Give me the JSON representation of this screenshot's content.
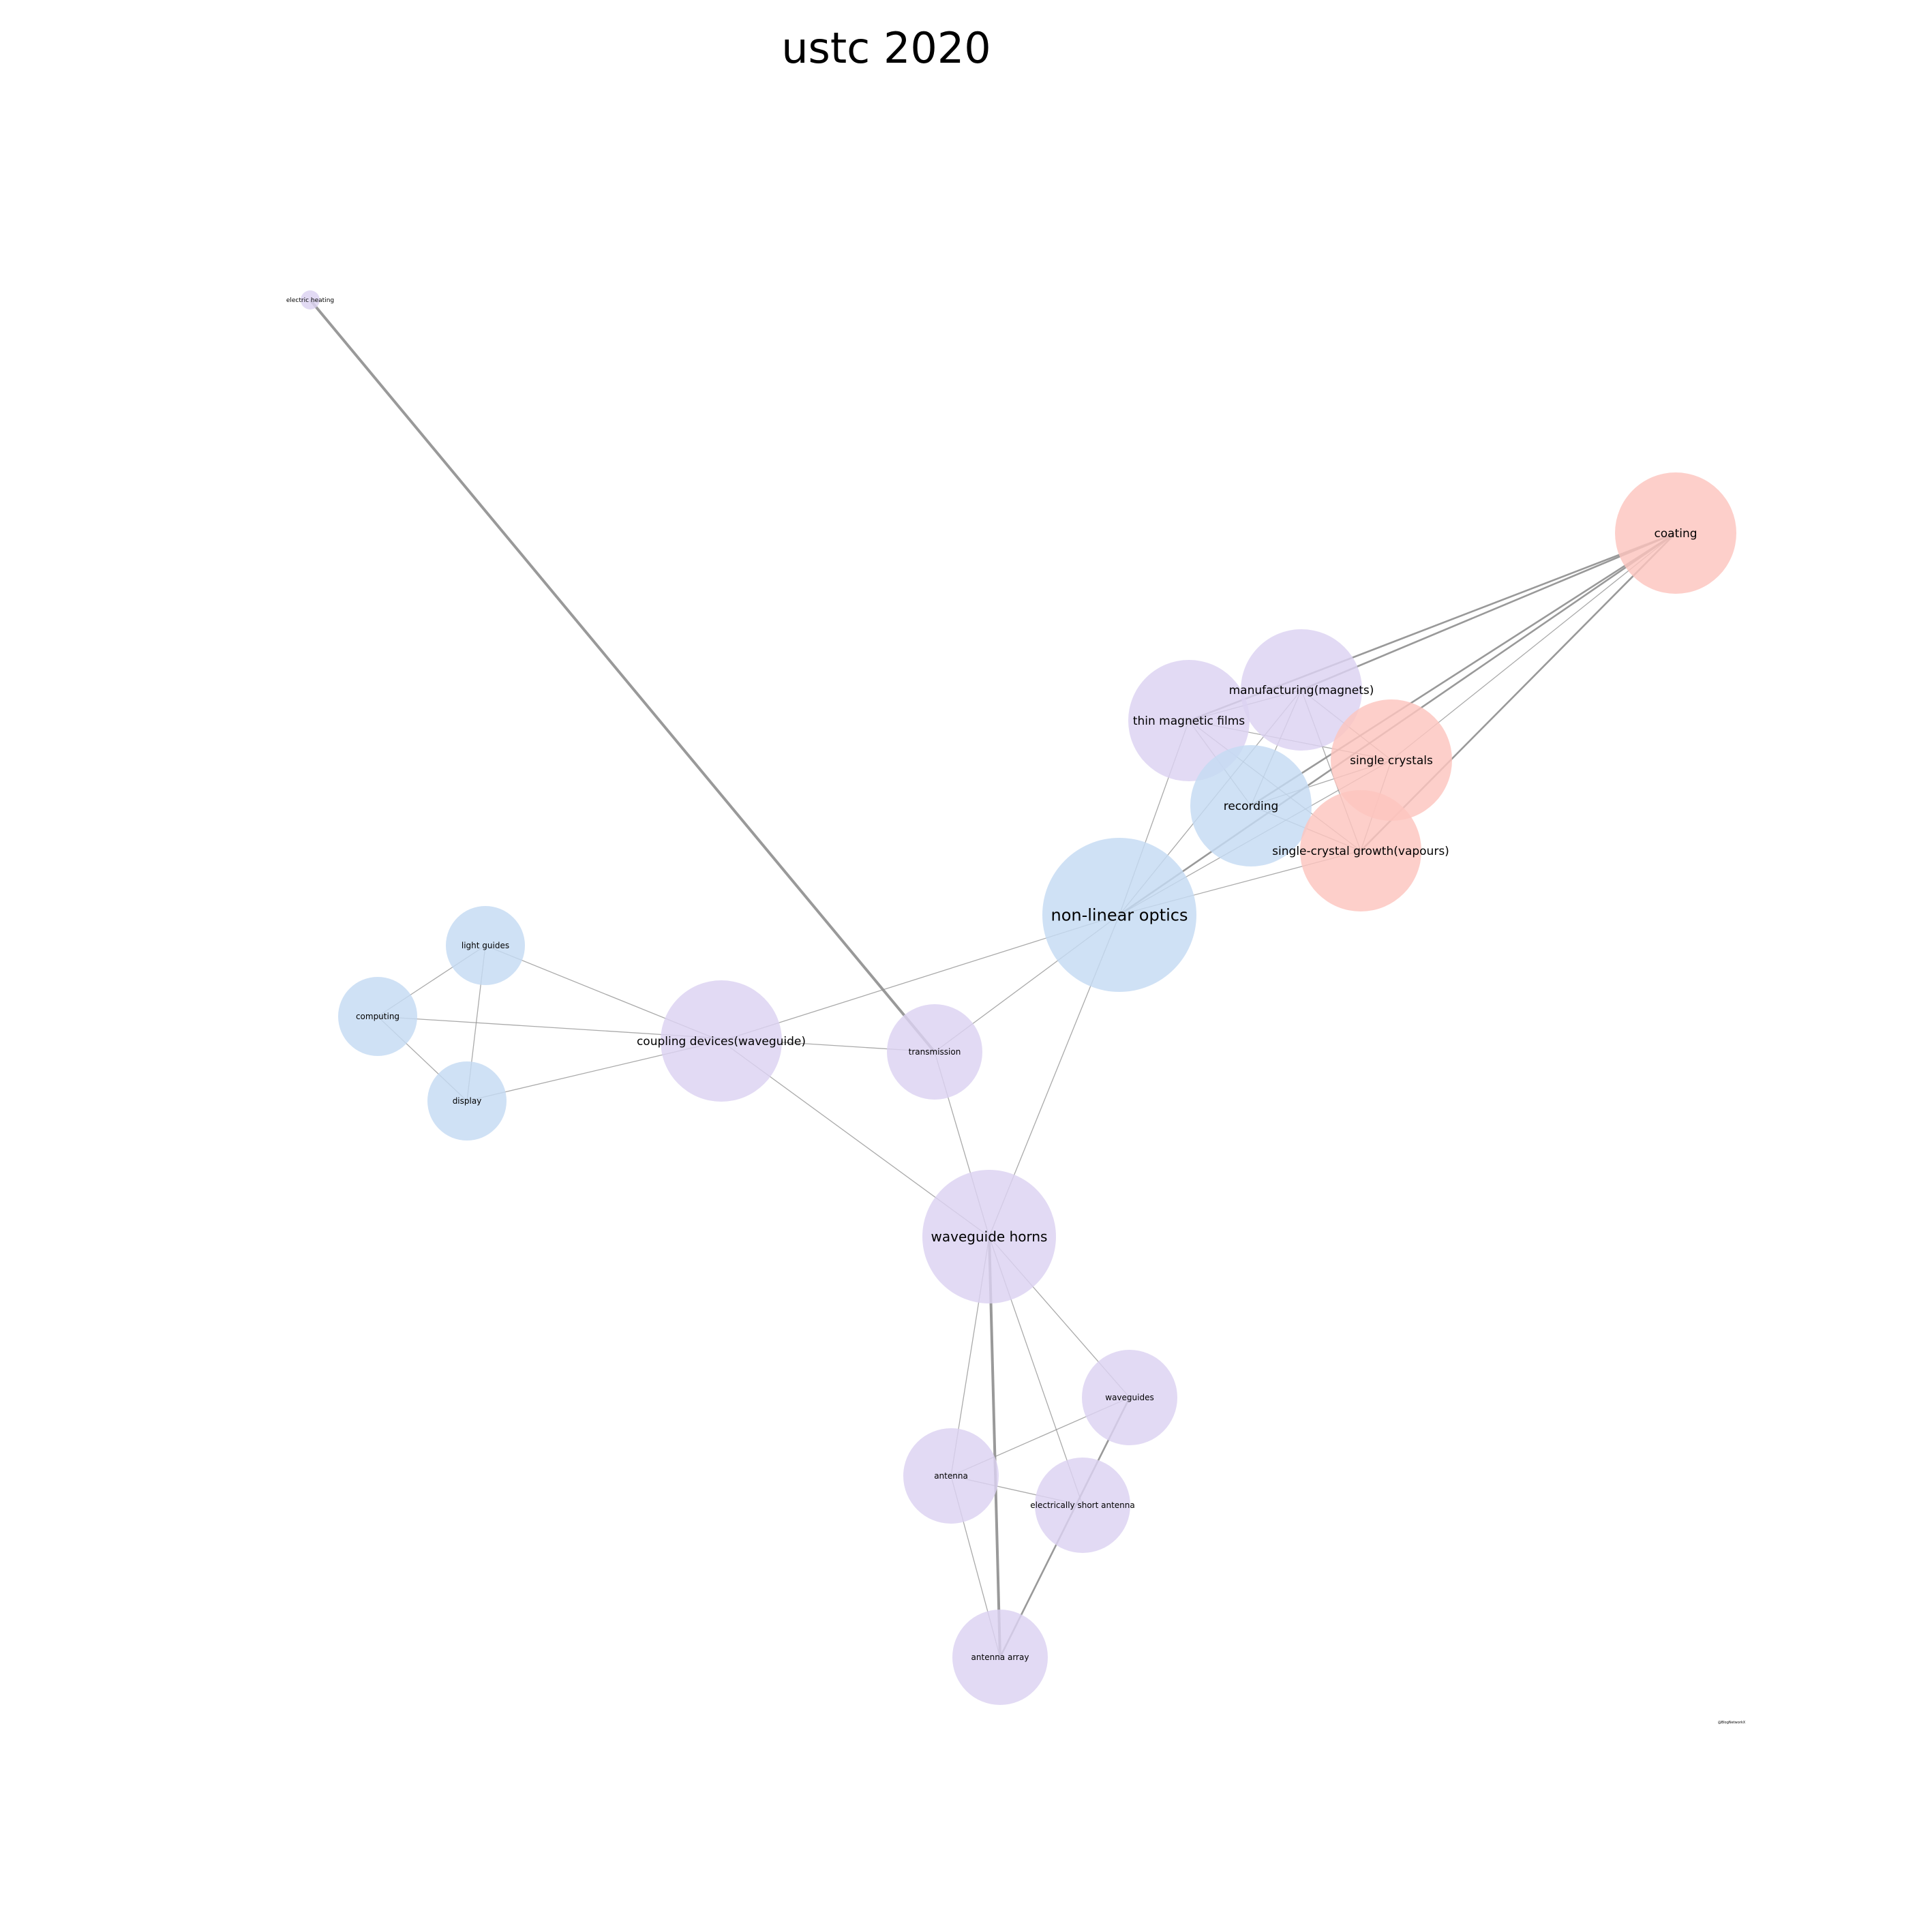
{
  "title": "ustc 2020",
  "watermark": "@BlogNetworkX",
  "colors": {
    "purple": "#dcd2f2",
    "blue": "#c5dbf3",
    "red": "#fcc5be",
    "edge": "#8e8e8e"
  },
  "nodes": [
    {
      "id": "electric-heating",
      "label": "electric heating",
      "color": "purple"
    },
    {
      "id": "coating",
      "label": "coating",
      "color": "red"
    },
    {
      "id": "manufacturing-magnets",
      "label": "manufacturing(magnets)",
      "color": "purple"
    },
    {
      "id": "thin-magnetic-films",
      "label": "thin magnetic films",
      "color": "purple"
    },
    {
      "id": "single-crystals",
      "label": "single crystals",
      "color": "red"
    },
    {
      "id": "recording",
      "label": "recording",
      "color": "blue"
    },
    {
      "id": "single-crystal-growth-vapours",
      "label": "single-crystal growth(vapours)",
      "color": "red"
    },
    {
      "id": "non-linear-optics",
      "label": "non-linear optics",
      "color": "blue"
    },
    {
      "id": "light-guides",
      "label": "light guides",
      "color": "blue"
    },
    {
      "id": "computing",
      "label": "computing",
      "color": "blue"
    },
    {
      "id": "display",
      "label": "display",
      "color": "blue"
    },
    {
      "id": "coupling-devices-waveguide",
      "label": "coupling devices(waveguide)",
      "color": "purple"
    },
    {
      "id": "transmission",
      "label": "transmission",
      "color": "purple"
    },
    {
      "id": "waveguide-horns",
      "label": "waveguide horns",
      "color": "purple"
    },
    {
      "id": "waveguides",
      "label": "waveguides",
      "color": "purple"
    },
    {
      "id": "antenna",
      "label": "antenna",
      "color": "purple"
    },
    {
      "id": "electrically-short-antenna",
      "label": "electrically short antenna",
      "color": "purple"
    },
    {
      "id": "antenna-array",
      "label": "antenna array",
      "color": "purple"
    }
  ],
  "edges": [
    {
      "source": "electric-heating",
      "target": "transmission",
      "weight": 3
    },
    {
      "source": "coating",
      "target": "manufacturing-magnets",
      "weight": 2
    },
    {
      "source": "coating",
      "target": "thin-magnetic-films",
      "weight": 2
    },
    {
      "source": "coating",
      "target": "recording",
      "weight": 2
    },
    {
      "source": "coating",
      "target": "non-linear-optics",
      "weight": 2
    },
    {
      "source": "coating",
      "target": "single-crystal-growth-vapours",
      "weight": 2
    },
    {
      "source": "coating",
      "target": "single-crystals",
      "weight": 1
    },
    {
      "source": "manufacturing-magnets",
      "target": "thin-magnetic-films",
      "weight": 1
    },
    {
      "source": "manufacturing-magnets",
      "target": "recording",
      "weight": 1
    },
    {
      "source": "manufacturing-magnets",
      "target": "single-crystals",
      "weight": 1
    },
    {
      "source": "manufacturing-magnets",
      "target": "single-crystal-growth-vapours",
      "weight": 1
    },
    {
      "source": "manufacturing-magnets",
      "target": "non-linear-optics",
      "weight": 1
    },
    {
      "source": "thin-magnetic-films",
      "target": "recording",
      "weight": 1
    },
    {
      "source": "thin-magnetic-films",
      "target": "single-crystals",
      "weight": 1
    },
    {
      "source": "thin-magnetic-films",
      "target": "single-crystal-growth-vapours",
      "weight": 1
    },
    {
      "source": "thin-magnetic-films",
      "target": "non-linear-optics",
      "weight": 1
    },
    {
      "source": "recording",
      "target": "single-crystal-growth-vapours",
      "weight": 1
    },
    {
      "source": "recording",
      "target": "single-crystals",
      "weight": 1
    },
    {
      "source": "single-crystals",
      "target": "single-crystal-growth-vapours",
      "weight": 1
    },
    {
      "source": "single-crystals",
      "target": "non-linear-optics",
      "weight": 1
    },
    {
      "source": "single-crystal-growth-vapours",
      "target": "non-linear-optics",
      "weight": 1
    },
    {
      "source": "non-linear-optics",
      "target": "coupling-devices-waveguide",
      "weight": 1
    },
    {
      "source": "non-linear-optics",
      "target": "transmission",
      "weight": 1
    },
    {
      "source": "non-linear-optics",
      "target": "waveguide-horns",
      "weight": 1
    },
    {
      "source": "light-guides",
      "target": "computing",
      "weight": 1
    },
    {
      "source": "light-guides",
      "target": "display",
      "weight": 1
    },
    {
      "source": "light-guides",
      "target": "coupling-devices-waveguide",
      "weight": 1
    },
    {
      "source": "computing",
      "target": "display",
      "weight": 1
    },
    {
      "source": "computing",
      "target": "transmission",
      "weight": 1
    },
    {
      "source": "display",
      "target": "coupling-devices-waveguide",
      "weight": 1
    },
    {
      "source": "coupling-devices-waveguide",
      "target": "waveguide-horns",
      "weight": 1
    },
    {
      "source": "transmission",
      "target": "waveguide-horns",
      "weight": 1
    },
    {
      "source": "waveguide-horns",
      "target": "waveguides",
      "weight": 1
    },
    {
      "source": "waveguide-horns",
      "target": "antenna",
      "weight": 1
    },
    {
      "source": "waveguide-horns",
      "target": "electrically-short-antenna",
      "weight": 1
    },
    {
      "source": "waveguide-horns",
      "target": "antenna-array",
      "weight": 3
    },
    {
      "source": "waveguides",
      "target": "antenna",
      "weight": 1
    },
    {
      "source": "waveguides",
      "target": "antenna-array",
      "weight": 2
    },
    {
      "source": "antenna",
      "target": "electrically-short-antenna",
      "weight": 1
    },
    {
      "source": "antenna",
      "target": "antenna-array",
      "weight": 1
    }
  ]
}
